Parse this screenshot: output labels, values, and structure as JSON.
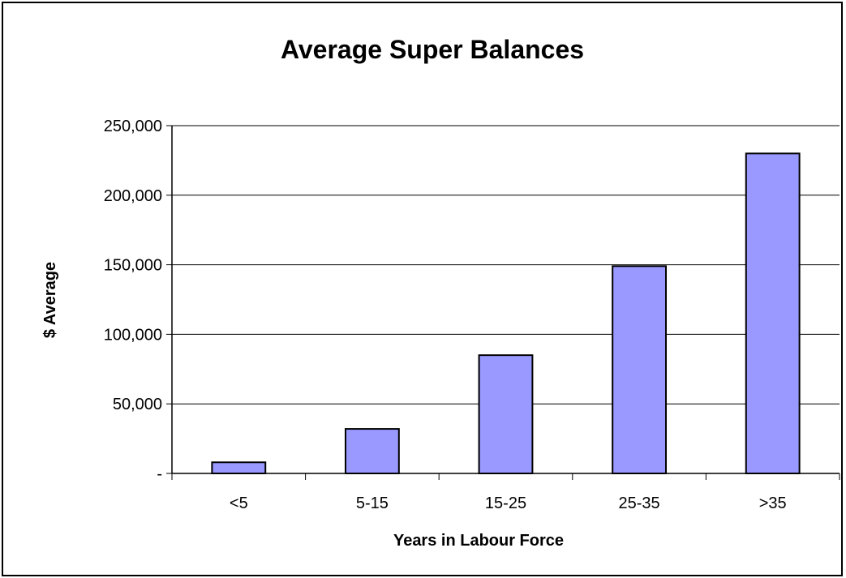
{
  "chart_data": {
    "type": "bar",
    "title": "Average Super Balances",
    "xlabel": "Years in Labour Force",
    "ylabel": "$ Average",
    "categories": [
      "<5",
      "5-15",
      "15-25",
      "25-35",
      ">35"
    ],
    "values": [
      8000,
      32000,
      85000,
      149000,
      230000
    ],
    "ylim": [
      0,
      250000
    ],
    "yticks": [
      0,
      50000,
      100000,
      150000,
      200000,
      250000
    ],
    "ytick_labels": [
      "-",
      "50,000",
      "100,000",
      "150,000",
      "200,000",
      "250,000"
    ],
    "grid": true,
    "legend": "none",
    "colors": {
      "bar": "#9999ff",
      "bar_border": "#000000",
      "grid": "#000000"
    }
  }
}
